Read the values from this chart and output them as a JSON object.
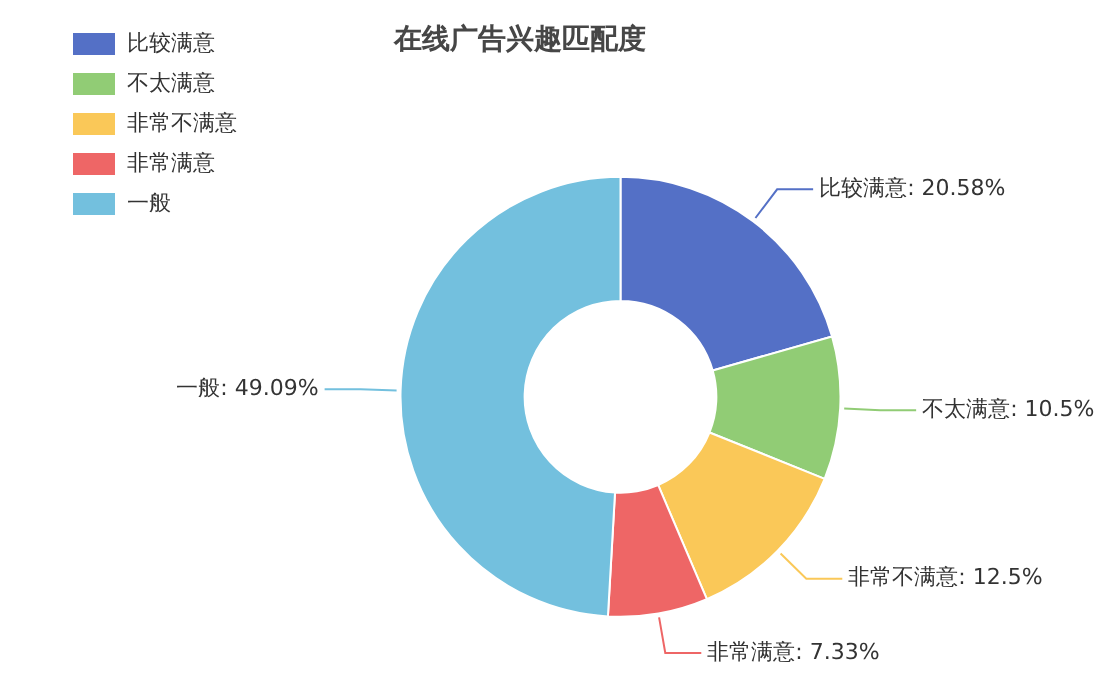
{
  "chart_data": {
    "type": "donut",
    "title": "在线广告兴趣匹配度",
    "categories": [
      "比较满意",
      "不太满意",
      "非常不满意",
      "非常满意",
      "一般"
    ],
    "values": [
      20.58,
      10.5,
      12.5,
      7.33,
      49.09
    ],
    "value_labels": [
      "比较满意: 20.58%",
      "不太满意: 10.5%",
      "非常不满意: 12.5%",
      "非常满意: 7.33%",
      "一般: 49.09%"
    ],
    "colors": [
      "#5470c6",
      "#91cc75",
      "#fac858",
      "#ee6666",
      "#73c0de"
    ],
    "legend": "top left"
  }
}
